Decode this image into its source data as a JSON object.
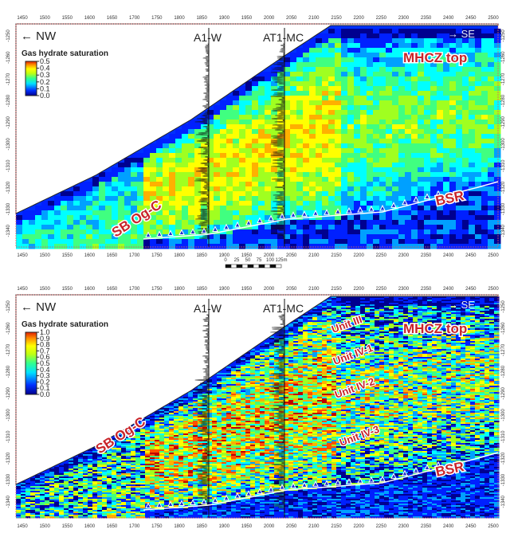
{
  "x_ticks": [
    "1450",
    "1500",
    "1550",
    "1600",
    "1650",
    "1700",
    "1750",
    "1800",
    "1850",
    "1900",
    "1950",
    "2000",
    "2050",
    "2100",
    "2150",
    "2200",
    "2250",
    "2300",
    "2350",
    "2400",
    "2450",
    "2500"
  ],
  "y_ticks": [
    "-1250",
    "-1260",
    "-1270",
    "-1280",
    "-1290",
    "-1300",
    "-1310",
    "-1320",
    "-1330",
    "-1340"
  ],
  "scale_bar": {
    "labels": [
      "0",
      "25",
      "50",
      "75",
      "100",
      "125m"
    ]
  },
  "colormap": [
    "#00008f",
    "#0020ff",
    "#00a0ff",
    "#00ffff",
    "#40ff80",
    "#a0ff20",
    "#ffff00",
    "#ffb000",
    "#ff5000",
    "#c00000"
  ],
  "panels": [
    {
      "direction_left": "← NW",
      "direction_right": "→ SE",
      "well_1": "A1-W",
      "well_2": "AT1-MC",
      "legend": {
        "title": "Gas hydrate saturation",
        "values": [
          "0.5",
          "0.4",
          "0.3",
          "0.2",
          "0.1",
          "0.0"
        ],
        "max": 0.5
      },
      "labels": {
        "sb": "SB Og-C",
        "mhcz": "MHCZ top",
        "bsr": "BSR"
      }
    },
    {
      "direction_left": "← NW",
      "direction_right": "→ SE",
      "well_1": "A1-W",
      "well_2": "AT1-MC",
      "legend": {
        "title": "Gas hydrate saturation",
        "values": [
          "1.0",
          "0.9",
          "0.8",
          "0.7",
          "0.6",
          "0.5",
          "0.4",
          "0.3",
          "0.2",
          "0.1",
          "0.0"
        ],
        "max": 1.0
      },
      "labels": {
        "sb": "SB Og-C",
        "mhcz": "MHCZ top",
        "bsr": "BSR",
        "unit_iii": "Unit III",
        "unit_iv1": "Unit IV-1",
        "unit_iv2": "Unit IV-2",
        "unit_iv3": "Unit IV-3"
      }
    }
  ]
}
